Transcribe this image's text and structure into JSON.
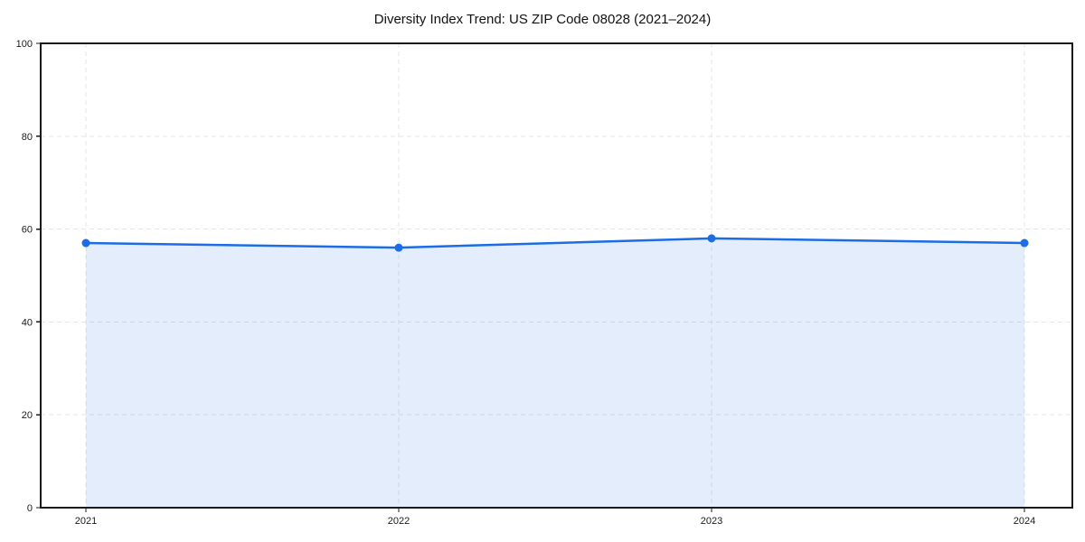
{
  "chart_data": {
    "type": "line",
    "title": "Diversity Index Trend: US ZIP Code 08028 (2021–2024)",
    "categories": [
      "2021",
      "2022",
      "2023",
      "2024"
    ],
    "series": [
      {
        "name": "Diversity Index",
        "values": [
          57,
          56,
          58,
          57
        ]
      }
    ],
    "xlabel": "",
    "ylabel": "",
    "ylim": [
      0,
      100
    ],
    "yticks": [
      0,
      20,
      40,
      60,
      80,
      100
    ],
    "grid": true,
    "grid_style": "dashed",
    "legend_position": "none",
    "area_fill": true,
    "markers": true,
    "colors": {
      "line": "#1b6ce5",
      "marker": "#1b6ce5",
      "fill": "#1b6ce5",
      "fill_opacity": 0.12,
      "grid": "#e4e4e4",
      "spine": "#1a1a1a",
      "tick_text": "#1a1a1a",
      "background": "#ffffff"
    }
  }
}
